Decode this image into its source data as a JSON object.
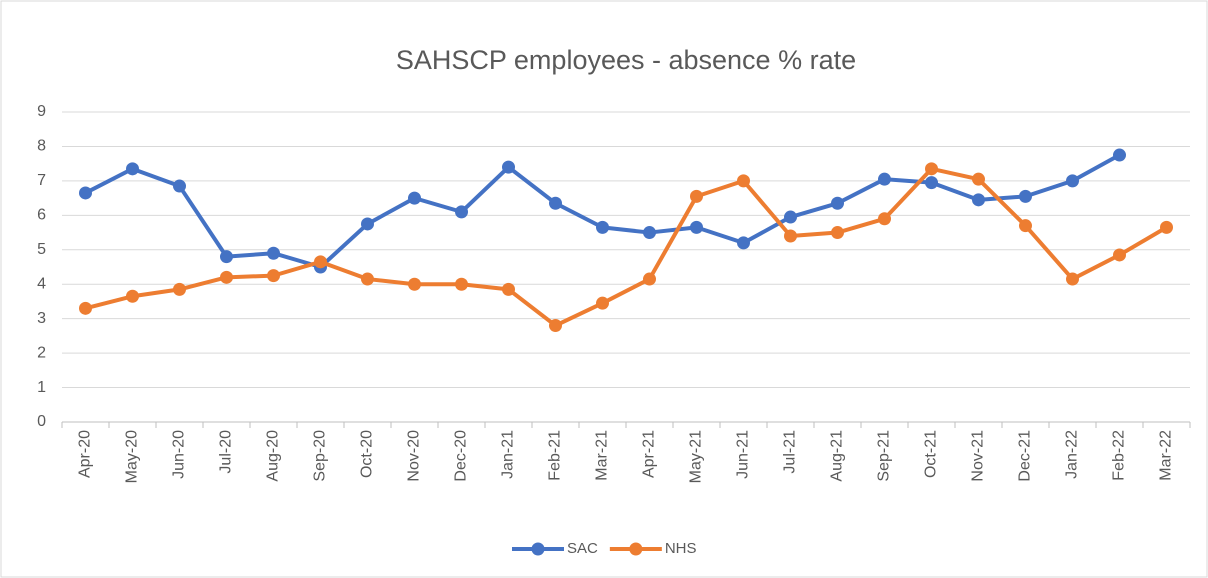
{
  "chart_data": {
    "type": "line",
    "title": "SAHSCP employees - absence % rate",
    "categories": [
      "Apr-20",
      "May-20",
      "Jun-20",
      "Jul-20",
      "Aug-20",
      "Sep-20",
      "Oct-20",
      "Nov-20",
      "Dec-20",
      "Jan-21",
      "Feb-21",
      "Mar-21",
      "Apr-21",
      "May-21",
      "Jun-21",
      "Jul-21",
      "Aug-21",
      "Sep-21",
      "Oct-21",
      "Nov-21",
      "Dec-21",
      "Jan-22",
      "Feb-22",
      "Mar-22"
    ],
    "series": [
      {
        "name": "SAC",
        "color": "#4472c4",
        "values": [
          6.65,
          7.35,
          6.85,
          4.8,
          4.9,
          4.5,
          5.75,
          6.5,
          6.1,
          7.4,
          6.35,
          5.65,
          5.5,
          5.65,
          5.2,
          5.95,
          6.35,
          7.05,
          6.95,
          6.45,
          6.55,
          7.0,
          7.75,
          null
        ]
      },
      {
        "name": "NHS",
        "color": "#ed7d31",
        "values": [
          3.3,
          3.65,
          3.85,
          4.2,
          4.25,
          4.65,
          4.15,
          4.0,
          4.0,
          3.85,
          2.8,
          3.45,
          4.15,
          6.55,
          7.0,
          5.4,
          5.5,
          5.9,
          7.35,
          7.05,
          5.7,
          4.15,
          4.85,
          5.65
        ]
      }
    ],
    "ylim": [
      0,
      9
    ],
    "yticks": [
      0,
      1,
      2,
      3,
      4,
      5,
      6,
      7,
      8,
      9
    ],
    "grid": true,
    "legend": "bottom"
  }
}
